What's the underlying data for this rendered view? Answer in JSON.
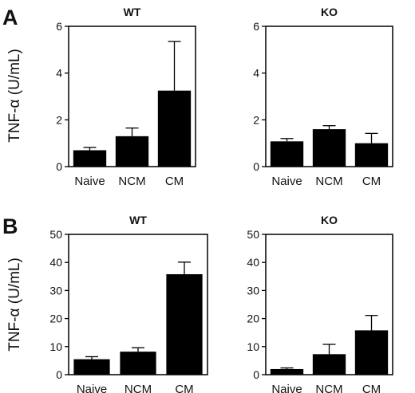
{
  "panel_labels": [
    "A",
    "B"
  ],
  "ylabel": "TNF-α (U/mL)",
  "chart_data": [
    {
      "type": "bar",
      "panel": "A",
      "title": "WT",
      "ylabel": "TNF-α (U/mL)",
      "categories": [
        "Naive",
        "NCM",
        "CM"
      ],
      "values": [
        0.7,
        1.3,
        3.25
      ],
      "errors": [
        0.12,
        0.35,
        2.1
      ],
      "ylim": [
        0,
        6
      ],
      "yticks": [
        0,
        2,
        4,
        6
      ],
      "bar_color": "#000000"
    },
    {
      "type": "bar",
      "panel": "A",
      "title": "KO",
      "ylabel": "",
      "categories": [
        "Naive",
        "NCM",
        "CM"
      ],
      "values": [
        1.08,
        1.6,
        1.0
      ],
      "errors": [
        0.12,
        0.15,
        0.42
      ],
      "ylim": [
        0,
        6
      ],
      "yticks": [
        0,
        2,
        4,
        6
      ],
      "bar_color": "#000000"
    },
    {
      "type": "bar",
      "panel": "B",
      "title": "WT",
      "ylabel": "TNF-α (U/mL)",
      "categories": [
        "Naive",
        "NCM",
        "CM"
      ],
      "values": [
        5.5,
        8.2,
        35.8
      ],
      "errors": [
        0.9,
        1.4,
        4.3
      ],
      "ylim": [
        0,
        50
      ],
      "yticks": [
        0,
        10,
        20,
        30,
        40,
        50
      ],
      "bar_color": "#000000"
    },
    {
      "type": "bar",
      "panel": "B",
      "title": "KO",
      "ylabel": "",
      "categories": [
        "Naive",
        "NCM",
        "CM"
      ],
      "values": [
        2.0,
        7.3,
        15.8
      ],
      "errors": [
        0.4,
        3.5,
        5.3
      ],
      "ylim": [
        0,
        50
      ],
      "yticks": [
        0,
        10,
        20,
        30,
        40,
        50
      ],
      "bar_color": "#000000"
    }
  ]
}
